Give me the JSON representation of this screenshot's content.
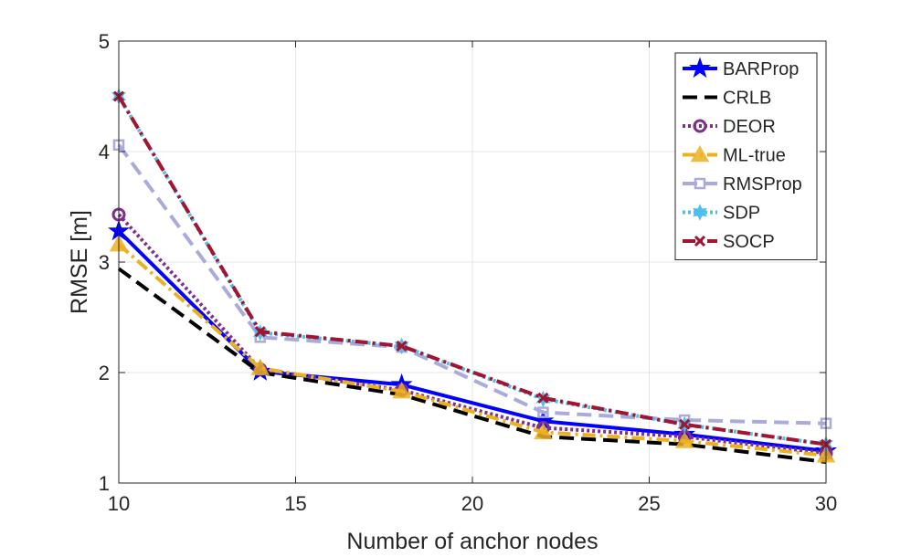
{
  "chart_data": {
    "type": "line",
    "title": "",
    "xlabel": "Number of anchor nodes",
    "ylabel": "RMSE [m]",
    "xlim": [
      10,
      30
    ],
    "ylim": [
      1,
      5
    ],
    "xticks": [
      "10",
      "15",
      "20",
      "25",
      "30"
    ],
    "yticks": [
      "1",
      "2",
      "3",
      "4",
      "5"
    ],
    "grid": true,
    "legend_position": "top-right",
    "x": [
      10,
      14,
      18,
      22,
      26,
      30
    ],
    "series": [
      {
        "name": "BARProp",
        "values": [
          3.28,
          2.01,
          1.89,
          1.56,
          1.44,
          1.29
        ],
        "color": "#0000ff",
        "dash": "",
        "marker": "star"
      },
      {
        "name": "CRLB",
        "values": [
          2.94,
          2.0,
          1.8,
          1.42,
          1.35,
          1.19
        ],
        "color": "#000000",
        "dash": "16,8",
        "marker": "none"
      },
      {
        "name": "DEOR",
        "values": [
          3.43,
          2.03,
          1.84,
          1.5,
          1.42,
          1.27
        ],
        "color": "#7e2f8e",
        "dash": "3,3",
        "marker": "circle"
      },
      {
        "name": "ML-true",
        "values": [
          3.16,
          2.04,
          1.83,
          1.46,
          1.38,
          1.25
        ],
        "color": "#edb120",
        "dash": "14,5,3,5",
        "marker": "triangle"
      },
      {
        "name": "RMSProp",
        "values": [
          4.06,
          2.32,
          2.23,
          1.64,
          1.57,
          1.54
        ],
        "color": "#aaaadd",
        "dash": "16,8",
        "marker": "square"
      },
      {
        "name": "SDP",
        "values": [
          4.5,
          2.36,
          2.24,
          1.76,
          1.53,
          1.35
        ],
        "color": "#4dbeee",
        "dash": "3,3",
        "marker": "hexstar"
      },
      {
        "name": "SOCP",
        "values": [
          4.5,
          2.37,
          2.24,
          1.77,
          1.53,
          1.35
        ],
        "color": "#a2142f",
        "dash": "14,5,3,5",
        "marker": "x"
      }
    ]
  }
}
